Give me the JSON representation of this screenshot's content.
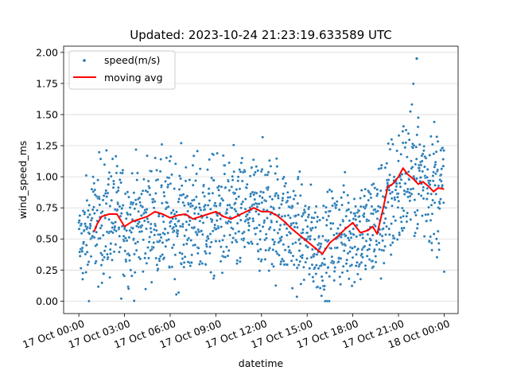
{
  "chart_data": {
    "type": "scatter",
    "title": "Updated: 2023-10-24 21:23:19.633589 UTC",
    "xlabel": "datetime",
    "ylabel": "wind_speed_ms",
    "xlim": [
      "2023-10-16T23:00:00",
      "2023-10-18T00:55:00"
    ],
    "ylim": [
      -0.1,
      2.05
    ],
    "x_ticks": [
      "17 Oct 00:00",
      "17 Oct 03:00",
      "17 Oct 06:00",
      "17 Oct 09:00",
      "17 Oct 12:00",
      "17 Oct 15:00",
      "17 Oct 18:00",
      "17 Oct 21:00",
      "18 Oct 00:00"
    ],
    "x_tick_hours": [
      0,
      3,
      6,
      9,
      12,
      15,
      18,
      21,
      24
    ],
    "y_ticks": [
      0.0,
      0.25,
      0.5,
      0.75,
      1.0,
      1.25,
      1.5,
      1.75,
      2.0
    ],
    "y_tick_labels": [
      "0.00",
      "0.25",
      "0.50",
      "0.75",
      "1.00",
      "1.25",
      "1.50",
      "1.75",
      "2.00"
    ],
    "grid": "horizontal",
    "legend_position": "top-left",
    "series": [
      {
        "name": "speed(m/s)",
        "kind": "scatter",
        "color": "#1f77b4",
        "x_range_hours": [
          0,
          24
        ],
        "point_count": 1440,
        "note_values_estimated": true,
        "envelope": {
          "hours": [
            0,
            1,
            2,
            3,
            4,
            5,
            6,
            7,
            8,
            9,
            10,
            11,
            12,
            13,
            14,
            15,
            16,
            17,
            18,
            19,
            20,
            21,
            22,
            23,
            24
          ],
          "median": [
            0.45,
            0.62,
            0.68,
            0.62,
            0.63,
            0.68,
            0.66,
            0.65,
            0.66,
            0.67,
            0.66,
            0.68,
            0.72,
            0.68,
            0.58,
            0.5,
            0.42,
            0.52,
            0.58,
            0.55,
            0.7,
            0.9,
            1.05,
            0.95,
            0.9
          ],
          "spread": [
            0.3,
            0.4,
            0.42,
            0.4,
            0.4,
            0.4,
            0.4,
            0.4,
            0.4,
            0.4,
            0.4,
            0.4,
            0.4,
            0.4,
            0.38,
            0.35,
            0.32,
            0.35,
            0.38,
            0.38,
            0.42,
            0.45,
            0.45,
            0.45,
            0.42
          ]
        },
        "max_point": {
          "hour": 22.2,
          "value": 1.95
        },
        "min_value": 0.0
      },
      {
        "name": "moving avg",
        "kind": "line",
        "color": "#ff0000",
        "hours": [
          1.0,
          1.2,
          1.5,
          2.0,
          2.5,
          3.0,
          3.5,
          4.0,
          4.5,
          5.0,
          5.5,
          6.0,
          6.5,
          7.0,
          7.5,
          8.0,
          8.5,
          9.0,
          9.5,
          10.0,
          10.5,
          11.0,
          11.5,
          12.0,
          12.5,
          13.0,
          13.5,
          14.0,
          14.5,
          15.0,
          15.5,
          16.0,
          16.5,
          17.0,
          17.5,
          18.0,
          18.5,
          19.0,
          19.3,
          19.6,
          20.0,
          20.3,
          20.6,
          21.0,
          21.3,
          21.6,
          22.0,
          22.3,
          22.6,
          23.0,
          23.3,
          23.6,
          24.0
        ],
        "values": [
          0.56,
          0.62,
          0.68,
          0.7,
          0.7,
          0.6,
          0.64,
          0.66,
          0.68,
          0.72,
          0.7,
          0.67,
          0.69,
          0.7,
          0.66,
          0.68,
          0.7,
          0.72,
          0.68,
          0.66,
          0.69,
          0.72,
          0.75,
          0.72,
          0.72,
          0.69,
          0.64,
          0.58,
          0.53,
          0.48,
          0.43,
          0.38,
          0.47,
          0.52,
          0.58,
          0.63,
          0.55,
          0.57,
          0.6,
          0.54,
          0.75,
          0.92,
          0.94,
          1.0,
          1.07,
          1.02,
          0.98,
          0.94,
          0.96,
          0.92,
          0.88,
          0.91,
          0.9
        ]
      }
    ]
  }
}
